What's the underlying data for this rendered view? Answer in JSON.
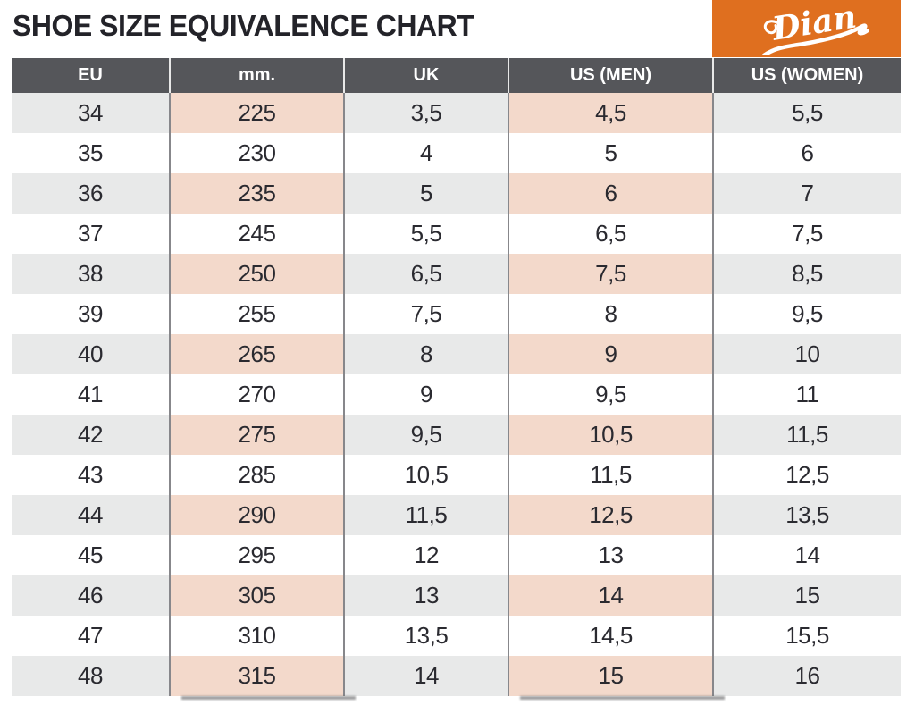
{
  "title": "SHOE SIZE EQUIVALENCE CHART",
  "logo": {
    "text": "Dian",
    "bg_color": "#DF6F1F",
    "text_color": "#FFFFFF"
  },
  "colors": {
    "header_bg": "#55565A",
    "header_text": "#FFFFFF",
    "stripe_gray": "#E8E9E9",
    "stripe_pink": "#F3D9CB",
    "column_divider": "#87878B",
    "title_text": "#232329",
    "body_text": "#2A2A30",
    "accent_orange": "#DF6F1F"
  },
  "chart_data": {
    "type": "table",
    "title": "SHOE SIZE EQUIVALENCE CHART",
    "columns": [
      "EU",
      "mm.",
      "UK",
      "US (MEN)",
      "US (WOMEN)"
    ],
    "rows": [
      [
        "34",
        "225",
        "3,5",
        "4,5",
        "5,5"
      ],
      [
        "35",
        "230",
        "4",
        "5",
        "6"
      ],
      [
        "36",
        "235",
        "5",
        "6",
        "7"
      ],
      [
        "37",
        "245",
        "5,5",
        "6,5",
        "7,5"
      ],
      [
        "38",
        "250",
        "6,5",
        "7,5",
        "8,5"
      ],
      [
        "39",
        "255",
        "7,5",
        "8",
        "9,5"
      ],
      [
        "40",
        "265",
        "8",
        "9",
        "10"
      ],
      [
        "41",
        "270",
        "9",
        "9,5",
        "11"
      ],
      [
        "42",
        "275",
        "9,5",
        "10,5",
        "11,5"
      ],
      [
        "43",
        "285",
        "10,5",
        "11,5",
        "12,5"
      ],
      [
        "44",
        "290",
        "11,5",
        "12,5",
        "13,5"
      ],
      [
        "45",
        "295",
        "12",
        "13",
        "14"
      ],
      [
        "46",
        "305",
        "13",
        "14",
        "15"
      ],
      [
        "47",
        "310",
        "13,5",
        "14,5",
        "15,5"
      ],
      [
        "48",
        "315",
        "14",
        "15",
        "16"
      ]
    ],
    "highlighted_columns": [
      "mm.",
      "US (MEN)"
    ],
    "layout": "alternating row stripes starting with row 34; highlighted columns tinted pink on striped rows"
  }
}
